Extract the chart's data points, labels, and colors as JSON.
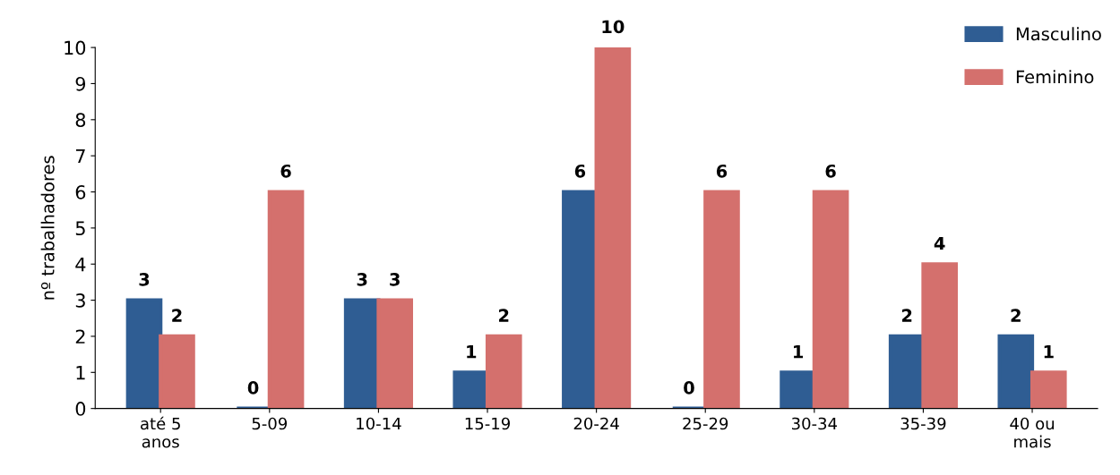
{
  "chart_data": {
    "type": "bar",
    "ylabel": "nº trabalhadores",
    "categories": [
      "até 5\nanos",
      "5-09",
      "10-14",
      "15-19",
      "20-24",
      "25-29",
      "30-34",
      "35-39",
      "40 ou\nmais"
    ],
    "series": [
      {
        "name": "Masculino",
        "color": "#2f5d93",
        "values": [
          3,
          0,
          3,
          1,
          6,
          0,
          1,
          2,
          2
        ]
      },
      {
        "name": "Feminino",
        "color": "#d4706d",
        "values": [
          2,
          6,
          3,
          2,
          10,
          6,
          6,
          4,
          1
        ]
      }
    ],
    "ylim": [
      0,
      10
    ],
    "yticks": [
      0,
      1,
      2,
      3,
      4,
      5,
      6,
      7,
      8,
      9,
      10
    ],
    "grid": false,
    "legend": "top right",
    "data_labels": true
  }
}
